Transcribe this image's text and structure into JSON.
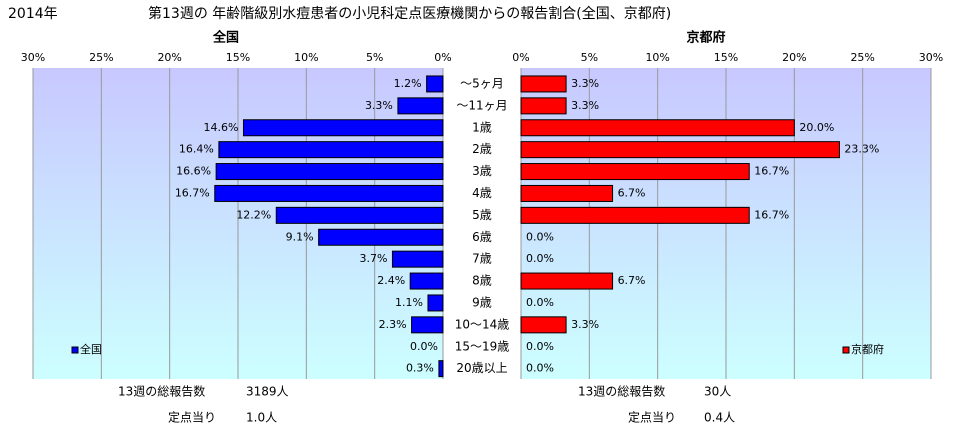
{
  "chart_data": {
    "type": "bar",
    "orientation": "horizontal",
    "year": "2014年",
    "title": "第13週の 年齢階級別水痘患者の小児科定点医療機関からの報告割合(全国、京都府)",
    "categories": [
      "～5ヶ月",
      "～11ヶ月",
      "1歳",
      "2歳",
      "3歳",
      "4歳",
      "5歳",
      "6歳",
      "7歳",
      "8歳",
      "9歳",
      "10～14歳",
      "15～19歳",
      "20歳以上"
    ],
    "series": [
      {
        "name": "全国",
        "color": "#0000ff",
        "values": [
          1.2,
          3.3,
          14.6,
          16.4,
          16.6,
          16.7,
          12.2,
          9.1,
          3.7,
          2.4,
          1.1,
          2.3,
          0.0,
          0.3
        ],
        "value_labels": [
          "1.2%",
          "3.3%",
          "14.6%",
          "16.4%",
          "16.6%",
          "16.7%",
          "12.2%",
          "9.1%",
          "3.7%",
          "2.4%",
          "1.1%",
          "2.3%",
          "0.0%",
          "0.3%"
        ]
      },
      {
        "name": "京都府",
        "color": "#ff0000",
        "values": [
          3.3,
          3.3,
          20.0,
          23.3,
          16.7,
          6.7,
          16.7,
          0.0,
          0.0,
          6.7,
          0.0,
          3.3,
          0.0,
          0.0
        ],
        "value_labels": [
          "3.3%",
          "3.3%",
          "20.0%",
          "23.3%",
          "16.7%",
          "6.7%",
          "16.7%",
          "0.0%",
          "0.0%",
          "6.7%",
          "0.0%",
          "3.3%",
          "0.0%",
          "0.0%"
        ]
      }
    ],
    "xlim": [
      0,
      30
    ],
    "xticks": [
      {
        "value": 0,
        "label": "0%"
      },
      {
        "value": 5,
        "label": "5%"
      },
      {
        "value": 10,
        "label": "10%"
      },
      {
        "value": 15,
        "label": "15%"
      },
      {
        "value": 20,
        "label": "20%"
      },
      {
        "value": 25,
        "label": "25%"
      },
      {
        "value": 30,
        "label": "30%"
      }
    ],
    "grid": true,
    "footer": [
      [
        {
          "label": "13週の総報告数",
          "value": "3189人"
        },
        {
          "label": "定点当り",
          "value": "1.0人"
        }
      ],
      [
        {
          "label": "13週の総報告数",
          "value": "30人"
        },
        {
          "label": "定点当り",
          "value": "0.4人"
        }
      ]
    ]
  }
}
